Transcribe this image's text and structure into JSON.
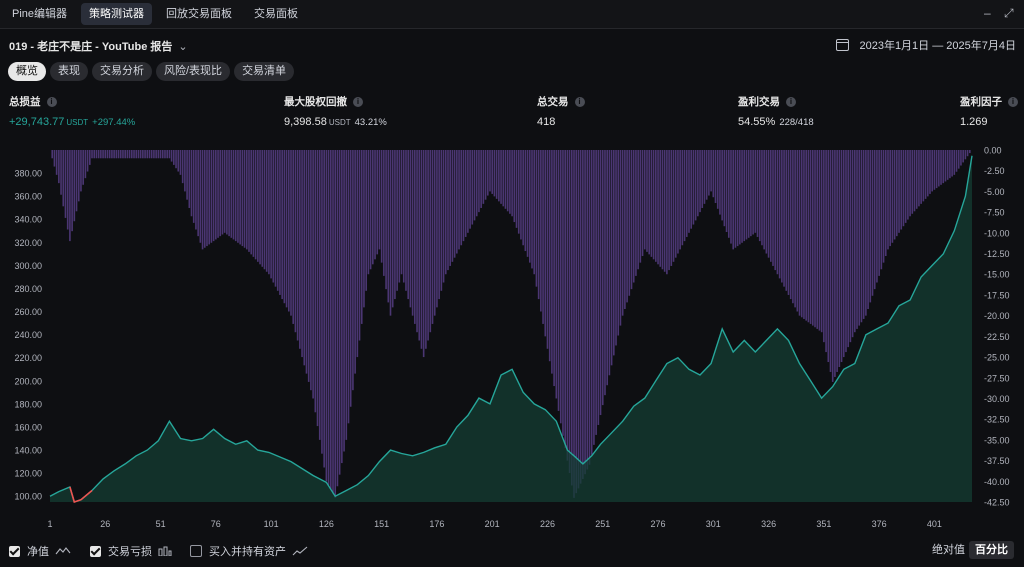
{
  "tabs": [
    {
      "label": "Pine编辑器",
      "active": false
    },
    {
      "label": "策略测试器",
      "active": true
    },
    {
      "label": "回放交易面板",
      "active": false
    },
    {
      "label": "交易面板",
      "active": false
    }
  ],
  "window_controls": {
    "minimize": "–",
    "maximize": "⤢"
  },
  "strategy": {
    "title": "019 - 老庄不是庄 - YouTube 报告",
    "chevron": "⌄"
  },
  "date_range": "2023年1月1日 — 2025年7月4日",
  "subtabs": [
    {
      "label": "概览",
      "active": true
    },
    {
      "label": "表现",
      "active": false
    },
    {
      "label": "交易分析",
      "active": false
    },
    {
      "label": "风险/表现比",
      "active": false
    },
    {
      "label": "交易清单",
      "active": false
    }
  ],
  "metrics": {
    "net_profit": {
      "label": "总损益",
      "value": "+29,743.77",
      "unit": "USDT",
      "sub": "+297.44%"
    },
    "max_drawdown": {
      "label": "最大股权回撤",
      "value": "9,398.58",
      "unit": "USDT",
      "sub": "43.21%"
    },
    "total_trades": {
      "label": "总交易",
      "value": "418"
    },
    "win_rate": {
      "label": "盈利交易",
      "value": "54.55%",
      "sub": "228/418"
    },
    "profit_factor": {
      "label": "盈利因子",
      "value": "1.269"
    }
  },
  "chart_data": {
    "type": "line",
    "series": [
      {
        "name": "净值",
        "role": "equity",
        "color": "#26a69a",
        "axis": "left",
        "x": [
          1,
          5,
          10,
          12,
          15,
          20,
          25,
          30,
          35,
          40,
          45,
          50,
          55,
          60,
          65,
          70,
          75,
          80,
          85,
          90,
          95,
          100,
          110,
          120,
          126,
          130,
          135,
          140,
          145,
          150,
          155,
          160,
          165,
          170,
          175,
          180,
          185,
          190,
          195,
          200,
          205,
          210,
          215,
          220,
          225,
          230,
          235,
          238,
          242,
          246,
          250,
          255,
          260,
          265,
          270,
          275,
          280,
          285,
          290,
          295,
          300,
          305,
          310,
          315,
          320,
          325,
          330,
          335,
          340,
          345,
          350,
          355,
          360,
          365,
          370,
          375,
          380,
          385,
          390,
          395,
          400,
          405,
          410,
          415,
          418
        ],
        "y": [
          100,
          104,
          108,
          95,
          97,
          105,
          115,
          122,
          128,
          135,
          140,
          148,
          165,
          150,
          148,
          150,
          158,
          150,
          145,
          148,
          140,
          138,
          130,
          118,
          112,
          100,
          105,
          110,
          118,
          130,
          140,
          137,
          135,
          138,
          142,
          145,
          160,
          170,
          185,
          180,
          205,
          210,
          190,
          180,
          175,
          165,
          140,
          135,
          128,
          135,
          145,
          155,
          165,
          178,
          185,
          200,
          215,
          220,
          210,
          205,
          215,
          245,
          225,
          235,
          225,
          235,
          245,
          235,
          215,
          200,
          185,
          195,
          210,
          215,
          240,
          245,
          250,
          265,
          270,
          290,
          300,
          310,
          330,
          360,
          395
        ]
      },
      {
        "name": "交易亏损",
        "role": "drawdown",
        "color": "#7e57c2",
        "axis": "right",
        "x": [
          1,
          5,
          10,
          15,
          20,
          25,
          35,
          45,
          55,
          60,
          65,
          70,
          80,
          90,
          100,
          110,
          120,
          126,
          130,
          135,
          140,
          145,
          150,
          155,
          160,
          170,
          180,
          190,
          200,
          210,
          220,
          230,
          238,
          245,
          250,
          260,
          270,
          280,
          290,
          300,
          310,
          320,
          330,
          340,
          350,
          355,
          360,
          365,
          370,
          380,
          390,
          400,
          410,
          418
        ],
        "y": [
          0,
          -4,
          -11,
          -5,
          -1,
          -1,
          -1,
          -1,
          -1,
          -3,
          -8,
          -12,
          -10,
          -12,
          -15,
          -20,
          -30,
          -40,
          -42,
          -35,
          -25,
          -15,
          -12,
          -20,
          -15,
          -25,
          -15,
          -10,
          -5,
          -8,
          -15,
          -30,
          -42,
          -38,
          -32,
          -20,
          -12,
          -15,
          -10,
          -5,
          -12,
          -10,
          -15,
          -20,
          -22,
          -28,
          -25,
          -22,
          -20,
          -12,
          -8,
          -5,
          -3,
          0
        ]
      }
    ],
    "x_ticks": [
      1,
      26,
      51,
      76,
      101,
      126,
      151,
      176,
      201,
      226,
      251,
      276,
      301,
      326,
      351,
      376,
      401
    ],
    "y_left_ticks": [
      100,
      120,
      140,
      160,
      180,
      200,
      220,
      240,
      260,
      280,
      300,
      320,
      340,
      360,
      380
    ],
    "y_left_range": [
      95,
      400
    ],
    "y_right_ticks": [
      0,
      -2.5,
      -5,
      -7.5,
      -10,
      -12.5,
      -15,
      -17.5,
      -20,
      -22.5,
      -25,
      -27.5,
      -30,
      -32.5,
      -35,
      -37.5,
      -40,
      -42.5
    ],
    "y_right_range": [
      -42.5,
      0
    ],
    "x_range": [
      1,
      418
    ],
    "grid": false,
    "down_color": "#ef5350"
  },
  "bottom": {
    "checkboxes": [
      {
        "label": "净值",
        "checked": true,
        "icon": "line-icon"
      },
      {
        "label": "交易亏损",
        "checked": true,
        "icon": "bars-icon"
      },
      {
        "label": "买入并持有资产",
        "checked": false,
        "icon": "line-icon"
      }
    ],
    "modes": [
      {
        "label": "绝对值",
        "active": false
      },
      {
        "label": "百分比",
        "active": true
      }
    ]
  }
}
